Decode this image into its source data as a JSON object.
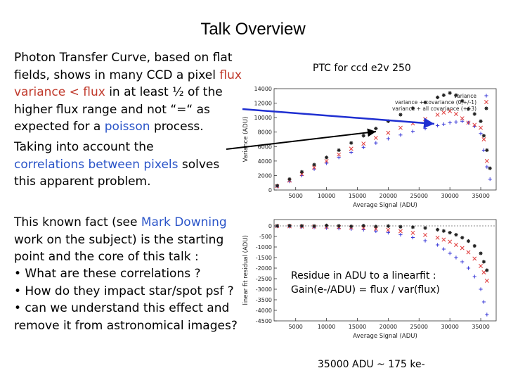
{
  "title": "Talk Overview",
  "intro": {
    "t1": "Photon Transfer Curve, based on flat fields, shows in many CCD  a pixel ",
    "t2": "flux variance < flux",
    "t3": " in at least ½ of the higher flux range and not “=“ as expected for a ",
    "t4": "poisson",
    "t5": " process."
  },
  "corr": {
    "t1": "Taking into account the ",
    "t2": "correlations between pixels",
    "t3": " solves this apparent problem."
  },
  "known": {
    "t1": "This known fact  (see ",
    "t2": "Mark Downing",
    "t3": " work on the subject)  is the starting point and the core of this talk :"
  },
  "bullets": [
    "• What are these correlations ?",
    "• How do  they impact star/spot psf ?",
    "• can we understand this effect and remove it from astronomical images?"
  ],
  "ptc_caption": "PTC for ccd e2v 250",
  "residue_caption": {
    "line1": "Residue in ADU to a linearfit :",
    "line2": "Gain(e-/ADU) = flux / var(flux)"
  },
  "bottom_note": "35000 ADU ~ 175 ke-",
  "colors": {
    "accent_blue": "#2a54c8",
    "accent_red": "#c0392b",
    "arrow_blue": "#1f2fd1",
    "series_variance": "#3b3bd8",
    "series_cov1": "#e03a3a",
    "series_cov3": "#222222"
  },
  "chart_data": [
    {
      "type": "scatter",
      "xlabel": "Average Signal (ADU)",
      "ylabel": "Variance (ADU)",
      "xlim": [
        1500,
        37500
      ],
      "ylim": [
        0,
        14000
      ],
      "xticks": [
        5000,
        10000,
        15000,
        20000,
        25000,
        30000,
        35000
      ],
      "yticks": [
        0,
        2000,
        4000,
        6000,
        8000,
        10000,
        12000,
        14000
      ],
      "grid": false,
      "legend": "top-right",
      "series": [
        {
          "name": "variance",
          "marker": "+",
          "points": [
            [
              2000,
              500
            ],
            [
              4000,
              1200
            ],
            [
              6000,
              2000
            ],
            [
              8000,
              2900
            ],
            [
              10000,
              3700
            ],
            [
              12000,
              4500
            ],
            [
              14000,
              5200
            ],
            [
              16000,
              5900
            ],
            [
              18000,
              6500
            ],
            [
              20000,
              7100
            ],
            [
              22000,
              7600
            ],
            [
              24000,
              8100
            ],
            [
              26000,
              8500
            ],
            [
              28000,
              8900
            ],
            [
              29000,
              9100
            ],
            [
              30000,
              9300
            ],
            [
              31000,
              9400
            ],
            [
              32000,
              9500
            ],
            [
              33000,
              9300
            ],
            [
              34000,
              8800
            ],
            [
              35000,
              7800
            ],
            [
              35500,
              5500
            ],
            [
              36000,
              3200
            ],
            [
              36500,
              1500
            ]
          ]
        },
        {
          "name": "variance + covariance (0,+/-1)",
          "marker": "x",
          "points": [
            [
              2000,
              520
            ],
            [
              4000,
              1300
            ],
            [
              6000,
              2200
            ],
            [
              8000,
              3100
            ],
            [
              10000,
              4000
            ],
            [
              12000,
              4900
            ],
            [
              14000,
              5700
            ],
            [
              16000,
              6400
            ],
            [
              18000,
              7200
            ],
            [
              20000,
              7900
            ],
            [
              22000,
              8600
            ],
            [
              24000,
              9200
            ],
            [
              26000,
              9800
            ],
            [
              28000,
              10400
            ],
            [
              29000,
              10700
            ],
            [
              30000,
              10900
            ],
            [
              31000,
              10500
            ],
            [
              32000,
              9900
            ],
            [
              33000,
              9300
            ],
            [
              34000,
              9000
            ],
            [
              35000,
              8600
            ],
            [
              35500,
              7000
            ],
            [
              36000,
              4000
            ]
          ]
        },
        {
          "name": "variance + all covariance (+/-3)",
          "marker": "*",
          "points": [
            [
              2000,
              600
            ],
            [
              4000,
              1500
            ],
            [
              6000,
              2500
            ],
            [
              8000,
              3500
            ],
            [
              10000,
              4500
            ],
            [
              12000,
              5500
            ],
            [
              14000,
              6500
            ],
            [
              16000,
              7500
            ],
            [
              18000,
              8500
            ],
            [
              20000,
              9500
            ],
            [
              22000,
              10400
            ],
            [
              24000,
              11300
            ],
            [
              26000,
              12100
            ],
            [
              28000,
              12800
            ],
            [
              29000,
              13100
            ],
            [
              30000,
              13400
            ],
            [
              31000,
              13100
            ],
            [
              32000,
              12300
            ],
            [
              33000,
              11200
            ],
            [
              34000,
              10500
            ],
            [
              35000,
              9500
            ],
            [
              35500,
              7500
            ],
            [
              36000,
              5500
            ],
            [
              36500,
              3000
            ]
          ]
        }
      ]
    },
    {
      "type": "scatter",
      "xlabel": "Average Signal (ADU)",
      "ylabel": "linear fit residual (ADU)",
      "xlim": [
        1500,
        37500
      ],
      "ylim": [
        -4500,
        300
      ],
      "xticks": [
        5000,
        10000,
        15000,
        20000,
        25000,
        30000,
        35000
      ],
      "yticks": [
        0,
        -500,
        -1000,
        -1500,
        -2000,
        -2500,
        -3000,
        -3500,
        -4000,
        -4500
      ],
      "grid": false,
      "series": [
        {
          "name": "variance",
          "marker": "+",
          "points": [
            [
              2000,
              -20
            ],
            [
              4000,
              -30
            ],
            [
              6000,
              -50
            ],
            [
              8000,
              -70
            ],
            [
              10000,
              -100
            ],
            [
              12000,
              -120
            ],
            [
              14000,
              -150
            ],
            [
              16000,
              -180
            ],
            [
              18000,
              -250
            ],
            [
              20000,
              -320
            ],
            [
              22000,
              -420
            ],
            [
              24000,
              -550
            ],
            [
              26000,
              -700
            ],
            [
              28000,
              -900
            ],
            [
              29000,
              -1100
            ],
            [
              30000,
              -1300
            ],
            [
              31000,
              -1500
            ],
            [
              32000,
              -1700
            ],
            [
              33000,
              -2000
            ],
            [
              34000,
              -2400
            ],
            [
              35000,
              -3000
            ],
            [
              35500,
              -3600
            ],
            [
              36000,
              -4200
            ]
          ]
        },
        {
          "name": "variance + covariance (0,+/-1)",
          "marker": "x",
          "points": [
            [
              2000,
              -10
            ],
            [
              4000,
              -20
            ],
            [
              6000,
              -30
            ],
            [
              8000,
              -40
            ],
            [
              10000,
              -50
            ],
            [
              12000,
              -60
            ],
            [
              14000,
              -80
            ],
            [
              16000,
              -100
            ],
            [
              18000,
              -140
            ],
            [
              20000,
              -190
            ],
            [
              22000,
              -250
            ],
            [
              24000,
              -330
            ],
            [
              26000,
              -430
            ],
            [
              28000,
              -560
            ],
            [
              29000,
              -650
            ],
            [
              30000,
              -750
            ],
            [
              31000,
              -900
            ],
            [
              32000,
              -1050
            ],
            [
              33000,
              -1250
            ],
            [
              34000,
              -1550
            ],
            [
              35000,
              -1900
            ],
            [
              35500,
              -2200
            ],
            [
              36000,
              -2600
            ]
          ]
        },
        {
          "name": "variance + all covariance (+/-3)",
          "marker": "*",
          "points": [
            [
              2000,
              0
            ],
            [
              4000,
              10
            ],
            [
              6000,
              0
            ],
            [
              8000,
              -10
            ],
            [
              10000,
              20
            ],
            [
              12000,
              0
            ],
            [
              14000,
              -20
            ],
            [
              16000,
              10
            ],
            [
              18000,
              -30
            ],
            [
              20000,
              -10
            ],
            [
              22000,
              -40
            ],
            [
              24000,
              -60
            ],
            [
              26000,
              -100
            ],
            [
              28000,
              -180
            ],
            [
              29000,
              -240
            ],
            [
              30000,
              -320
            ],
            [
              31000,
              -420
            ],
            [
              32000,
              -560
            ],
            [
              33000,
              -720
            ],
            [
              34000,
              -950
            ],
            [
              35000,
              -1300
            ],
            [
              35500,
              -1700
            ],
            [
              36000,
              -2100
            ]
          ]
        }
      ]
    }
  ]
}
